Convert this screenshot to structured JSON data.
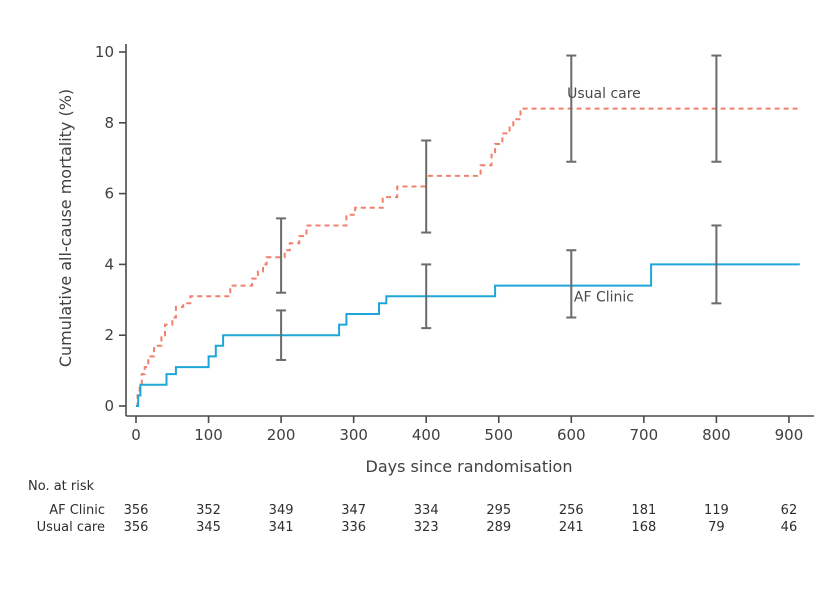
{
  "chart_data": {
    "type": "line",
    "subtype": "kaplan-meier-step",
    "xlabel": "Days since randomisation",
    "ylabel": "Cumulative all-cause mortality (%)",
    "xlim": [
      0,
      920
    ],
    "ylim": [
      0,
      10
    ],
    "xticks": [
      0,
      100,
      200,
      300,
      400,
      500,
      600,
      700,
      800,
      900
    ],
    "yticks": [
      0,
      2,
      4,
      6,
      8,
      10
    ],
    "grid": false,
    "series": [
      {
        "name": "Usual care",
        "color": "#f0806c",
        "style": "dashed",
        "points": [
          [
            0,
            0
          ],
          [
            2,
            0.3
          ],
          [
            5,
            0.6
          ],
          [
            8,
            0.9
          ],
          [
            12,
            1.1
          ],
          [
            17,
            1.4
          ],
          [
            25,
            1.7
          ],
          [
            35,
            2.0
          ],
          [
            40,
            2.3
          ],
          [
            50,
            2.5
          ],
          [
            55,
            2.8
          ],
          [
            65,
            2.9
          ],
          [
            75,
            3.1
          ],
          [
            130,
            3.4
          ],
          [
            160,
            3.6
          ],
          [
            168,
            3.8
          ],
          [
            175,
            4.0
          ],
          [
            180,
            4.2
          ],
          [
            205,
            4.4
          ],
          [
            212,
            4.6
          ],
          [
            225,
            4.8
          ],
          [
            235,
            5.1
          ],
          [
            290,
            5.4
          ],
          [
            302,
            5.6
          ],
          [
            340,
            5.9
          ],
          [
            360,
            6.2
          ],
          [
            400,
            6.5
          ],
          [
            475,
            6.8
          ],
          [
            490,
            7.1
          ],
          [
            495,
            7.4
          ],
          [
            505,
            7.7
          ],
          [
            515,
            7.9
          ],
          [
            520,
            8.1
          ],
          [
            530,
            8.4
          ],
          [
            915,
            8.4
          ]
        ]
      },
      {
        "name": "AF Clinic",
        "color": "#1fa6d8",
        "style": "solid",
        "points": [
          [
            0,
            0
          ],
          [
            3,
            0.3
          ],
          [
            6,
            0.6
          ],
          [
            42,
            0.9
          ],
          [
            55,
            1.1
          ],
          [
            100,
            1.4
          ],
          [
            110,
            1.7
          ],
          [
            120,
            2.0
          ],
          [
            280,
            2.3
          ],
          [
            290,
            2.6
          ],
          [
            335,
            2.9
          ],
          [
            345,
            3.1
          ],
          [
            495,
            3.4
          ],
          [
            710,
            4.0
          ],
          [
            915,
            4.0
          ]
        ]
      }
    ],
    "error_bars": [
      {
        "series": "Usual care",
        "x": 200,
        "low": 3.2,
        "high": 5.3
      },
      {
        "series": "Usual care",
        "x": 400,
        "low": 4.9,
        "high": 7.5
      },
      {
        "series": "Usual care",
        "x": 600,
        "low": 6.9,
        "high": 9.9
      },
      {
        "series": "Usual care",
        "x": 800,
        "low": 6.9,
        "high": 9.9
      },
      {
        "series": "AF Clinic",
        "x": 200,
        "low": 1.3,
        "high": 2.7
      },
      {
        "series": "AF Clinic",
        "x": 400,
        "low": 2.2,
        "high": 4.0
      },
      {
        "series": "AF Clinic",
        "x": 600,
        "low": 2.5,
        "high": 4.4
      },
      {
        "series": "AF Clinic",
        "x": 800,
        "low": 2.9,
        "high": 5.1
      }
    ],
    "annotations": [
      {
        "text": "Usual care",
        "x": 645,
        "y": 8.7
      },
      {
        "text": "AF Clinic",
        "x": 645,
        "y": 2.95
      }
    ],
    "risk_table": {
      "title": "No. at risk",
      "columns_x": [
        0,
        100,
        200,
        300,
        400,
        500,
        600,
        700,
        800,
        900
      ],
      "rows": [
        {
          "label": "AF Clinic",
          "values": [
            356,
            352,
            349,
            347,
            334,
            295,
            256,
            181,
            119,
            62
          ]
        },
        {
          "label": "Usual care",
          "values": [
            356,
            345,
            341,
            336,
            323,
            289,
            241,
            168,
            79,
            46
          ]
        }
      ]
    },
    "colors": {
      "axis": "#4a4a4a",
      "error_bar": "#6b6b6b"
    }
  }
}
